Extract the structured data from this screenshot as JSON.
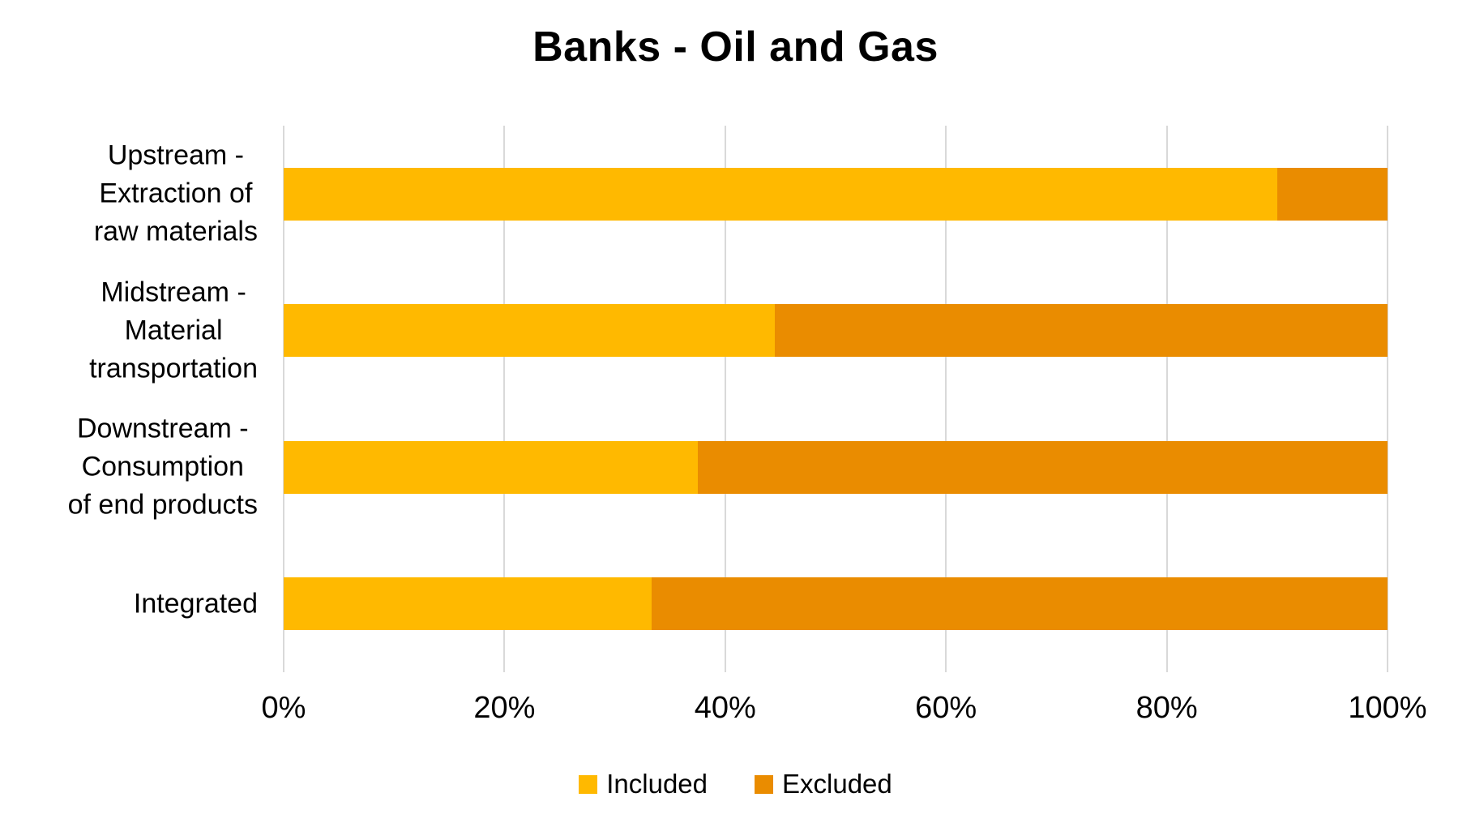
{
  "chart_data": {
    "type": "bar",
    "orientation": "horizontal",
    "stacked": true,
    "title": "Banks - Oil and Gas",
    "categories": [
      "Upstream - Extraction of raw materials",
      "Midstream - Material transportation",
      "Downstream - Consumption of end products",
      "Integrated"
    ],
    "category_lines": [
      [
        "Upstream -",
        "Extraction of",
        "raw materials"
      ],
      [
        "Midstream -",
        "Material",
        "transportation"
      ],
      [
        "Downstream -",
        "Consumption",
        "of end products"
      ],
      [
        "Integrated"
      ]
    ],
    "series": [
      {
        "name": "Included",
        "color": "#FFB900",
        "values": [
          90,
          44.5,
          37.5,
          33.3
        ]
      },
      {
        "name": "Excluded",
        "color": "#EA8C00",
        "values": [
          10,
          55.5,
          62.5,
          66.7
        ]
      }
    ],
    "x_axis": {
      "min": 0,
      "max": 100,
      "unit": "%",
      "ticks": [
        "0%",
        "20%",
        "40%",
        "60%",
        "80%",
        "100%"
      ]
    },
    "legend": {
      "position": "bottom",
      "entries": [
        "Included",
        "Excluded"
      ]
    },
    "grid": {
      "vertical": true,
      "color": "#D9D9D9"
    }
  },
  "colors": {
    "background": "#FFFFFF",
    "text": "#000000",
    "included": "#FFB900",
    "excluded": "#EA8C00",
    "gridline": "#D9D9D9"
  }
}
